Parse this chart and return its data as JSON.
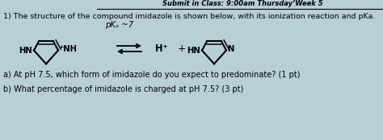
{
  "bg_color": "#b8cfd8",
  "header_text": "Submit in Class: 9:00am Thursday’Week 5",
  "title_text": "1) The structure of the compound imidazole is shown below, with its ionization reaction and pKa.",
  "pka_text": "pKₐ ~7",
  "question_a": "a) At pH 7.5, which form of imidazole do you expect to predominate? (1 pt)",
  "question_b": "b) What percentage of imidazole is charged at pH 7.5? (3 pt)",
  "hplus_text": "H⁺",
  "plus_text": "+",
  "hn_left": "HN",
  "hn_right": "HN",
  "nh_text": "⁺NH",
  "n_text": "N",
  "title_fontsize": 6.8,
  "question_fontsize": 7.0,
  "ring_lw": 1.5,
  "arrow_color": "#222222"
}
